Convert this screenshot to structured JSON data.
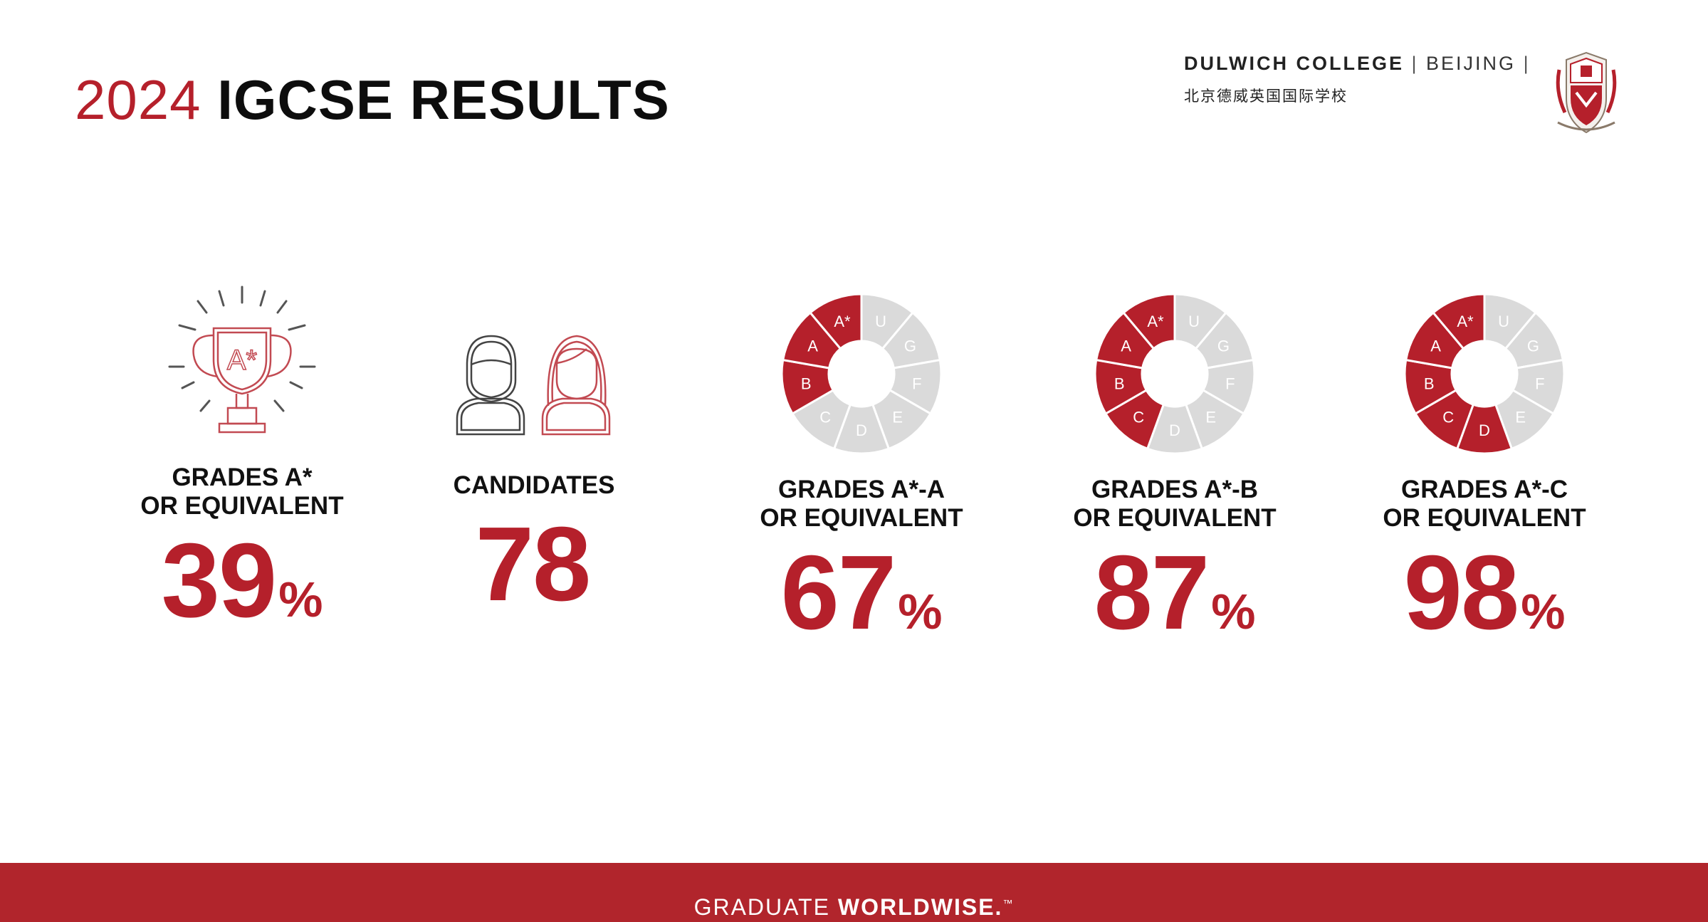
{
  "header": {
    "title_year": "2024",
    "title_main": "IGCSE RESULTS"
  },
  "brand": {
    "name": "DULWICH COLLEGE",
    "city": "BEIJING",
    "chinese_name": "北京德威英国国际学校",
    "crest_icon": "dulwich-crest-icon"
  },
  "stats": [
    {
      "label_line1": "GRADES A*",
      "label_line2": "OR EQUIVALENT",
      "value": "39",
      "unit": "%",
      "icon": "trophy-icon"
    },
    {
      "label_line1": "CANDIDATES",
      "label_line2": "",
      "value": "78",
      "unit": "",
      "icon": "candidates-icon"
    },
    {
      "label_line1": "GRADES A*-A",
      "label_line2": "OR EQUIVALENT",
      "value": "67",
      "unit": "%",
      "icon": "grade-wheel-icon"
    },
    {
      "label_line1": "GRADES A*-B",
      "label_line2": "OR EQUIVALENT",
      "value": "87",
      "unit": "%",
      "icon": "grade-wheel-icon"
    },
    {
      "label_line1": "GRADES A*-C",
      "label_line2": "OR EQUIVALENT",
      "value": "98",
      "unit": "%",
      "icon": "grade-wheel-icon"
    }
  ],
  "trophy_letter": "A*",
  "grade_wheel": {
    "grades": [
      "A*",
      "U",
      "G",
      "F",
      "E",
      "D",
      "C",
      "B",
      "A"
    ],
    "highlighted_counts": [
      3,
      4,
      5
    ]
  },
  "footer": {
    "text_light": "GRADUATE",
    "text_bold": "WORLDWISE.",
    "trademark": "™"
  },
  "colors": {
    "accent": "#b5202b",
    "wheel_inactive": "#dadada",
    "footer_bg": "#b1252c"
  }
}
